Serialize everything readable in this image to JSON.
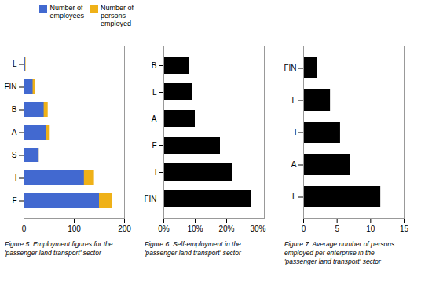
{
  "chart_data": [
    {
      "type": "bar",
      "orientation": "horizontal",
      "caption": "Figure 5: Employment figures for the\n'passenger land transport' sector",
      "categories": [
        "F",
        "I",
        "S",
        "A",
        "B",
        "FIN",
        "L"
      ],
      "series": [
        {
          "name": "Number of\nemployees",
          "values": [
            150,
            120,
            30,
            45,
            40,
            18,
            3
          ]
        },
        {
          "name": "Number of\npersons\nemployed",
          "values": [
            175,
            140,
            30,
            52,
            48,
            22,
            4
          ]
        }
      ],
      "xlim": [
        0,
        200
      ],
      "xticks": [
        0,
        100,
        200
      ],
      "legend": "upper right"
    },
    {
      "type": "bar",
      "orientation": "horizontal",
      "caption": "Figure 6: Self-employment in the\n'passenger land transport' sector",
      "categories": [
        "FIN",
        "I",
        "F",
        "A",
        "L",
        "B"
      ],
      "values": [
        0.28,
        0.22,
        0.18,
        0.1,
        0.09,
        0.08
      ],
      "xlim": [
        0,
        0.32
      ],
      "xticks": [
        {
          "value": 0,
          "label": "0%"
        },
        {
          "value": 0.1,
          "label": "10%"
        },
        {
          "value": 0.2,
          "label": "20%"
        },
        {
          "value": 0.3,
          "label": "30%"
        }
      ]
    },
    {
      "type": "bar",
      "orientation": "horizontal",
      "caption": "Figure 7: Average number of persons\nemployed per enterprise in the\n'passenger land transport' sector",
      "categories": [
        "L",
        "A",
        "I",
        "F",
        "FIN"
      ],
      "values": [
        11.5,
        7.0,
        5.5,
        4.0,
        2.0
      ],
      "xlim": [
        0,
        15
      ],
      "xticks": [
        0,
        5,
        10,
        15
      ]
    }
  ]
}
